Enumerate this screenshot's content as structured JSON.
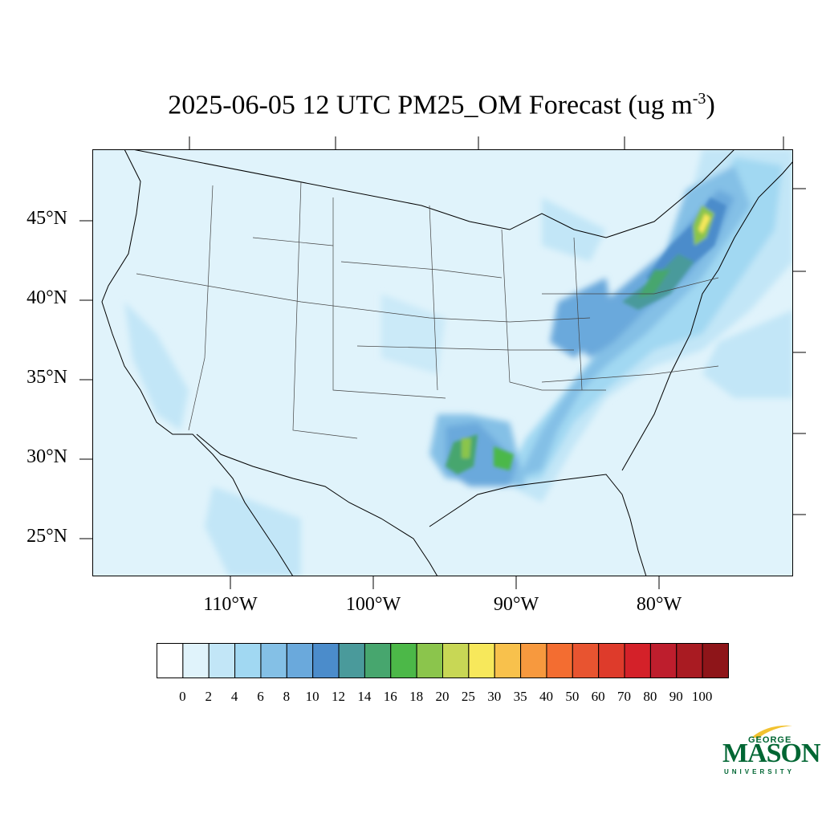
{
  "title": {
    "text": "2025-06-05 12 UTC PM25_OM Forecast (ug m",
    "superscript": "-3",
    "closing": ")"
  },
  "latitude_labels": [
    "45°N",
    "40°N",
    "35°N",
    "30°N",
    "25°N"
  ],
  "longitude_labels": [
    "110°W",
    "100°W",
    "90°W",
    "80°W"
  ],
  "colorbar": {
    "levels": [
      "0",
      "2",
      "4",
      "6",
      "8",
      "10",
      "12",
      "14",
      "16",
      "18",
      "20",
      "25",
      "30",
      "35",
      "40",
      "50",
      "60",
      "70",
      "80",
      "90",
      "100"
    ],
    "colors": [
      "#ffffff",
      "#e0f3fb",
      "#c2e6f7",
      "#a1d8f2",
      "#84c0e6",
      "#6aa9dc",
      "#4b8ccb",
      "#4a9a9b",
      "#47a66e",
      "#4cb848",
      "#8bc54c",
      "#c8d755",
      "#f7e85b",
      "#f8c14c",
      "#f7993e",
      "#f36d31",
      "#e85430",
      "#de3b2b",
      "#d42129",
      "#be1e2d",
      "#a91b22",
      "#8e1519"
    ]
  },
  "logo": {
    "line1": "GEORGE",
    "line2": "MASON",
    "line3": "UNIVERSITY",
    "color": "#006633",
    "accent": "#f2c230"
  }
}
